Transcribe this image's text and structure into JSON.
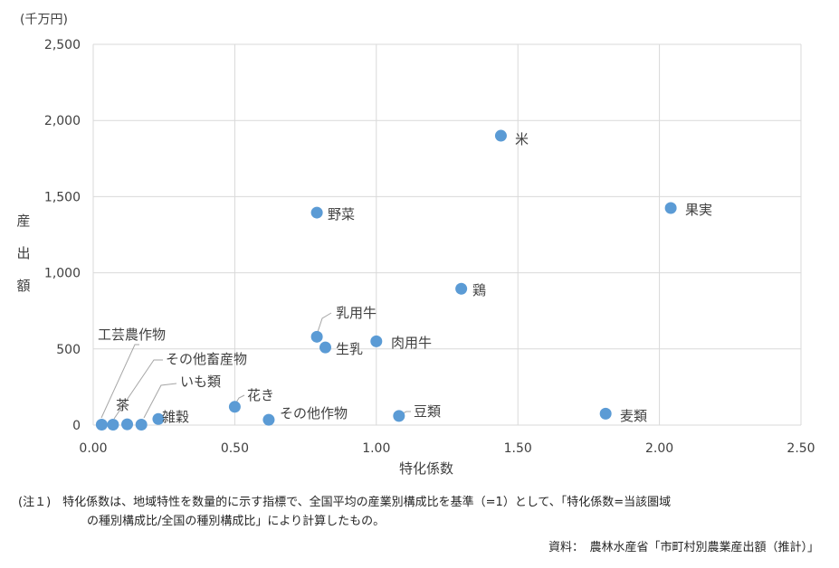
{
  "chart_data": {
    "type": "scatter",
    "unit_label": "(千万円)",
    "xlabel": "特化係数",
    "ylabel": [
      "産",
      "出",
      "額"
    ],
    "xlim": [
      0,
      2.5
    ],
    "ylim": [
      0,
      2500
    ],
    "x_ticks": [
      0,
      0.5,
      1.0,
      1.5,
      2.0,
      2.5
    ],
    "x_tick_labels": [
      "0.00",
      "0.50",
      "1.00",
      "1.50",
      "2.00",
      "2.50"
    ],
    "y_ticks": [
      0,
      500,
      1000,
      1500,
      2000,
      2500
    ],
    "y_tick_labels": [
      "0",
      "500",
      "1,000",
      "1,500",
      "2,000",
      "2,500"
    ],
    "grid": true,
    "marker_color": "#5b9bd5",
    "points": [
      {
        "label": "米",
        "x": 1.44,
        "y": 1900
      },
      {
        "label": "果実",
        "x": 2.04,
        "y": 1425
      },
      {
        "label": "野菜",
        "x": 0.79,
        "y": 1395
      },
      {
        "label": "鶏",
        "x": 1.3,
        "y": 895
      },
      {
        "label": "乳用牛",
        "x": 0.79,
        "y": 580
      },
      {
        "label": "生乳",
        "x": 0.82,
        "y": 510
      },
      {
        "label": "肉用牛",
        "x": 1.0,
        "y": 550
      },
      {
        "label": "花き",
        "x": 0.5,
        "y": 120
      },
      {
        "label": "その他作物",
        "x": 0.62,
        "y": 35
      },
      {
        "label": "豆類",
        "x": 1.08,
        "y": 60
      },
      {
        "label": "麦類",
        "x": 1.81,
        "y": 75
      },
      {
        "label": "工芸農作物",
        "x": 0.03,
        "y": 3
      },
      {
        "label": "その他畜産物",
        "x": 0.07,
        "y": 3
      },
      {
        "label": "茶",
        "x": 0.12,
        "y": 5
      },
      {
        "label": "いも類",
        "x": 0.17,
        "y": 3
      },
      {
        "label": "雑穀",
        "x": 0.23,
        "y": 40
      }
    ]
  },
  "notes": {
    "note_marker": "(注１)",
    "note_line1": "特化係数は、地域特性を数量的に示す指標で、全国平均の産業別構成比を基準（=1）として、「特化係数=当該圏域",
    "note_line2": "の種別構成比/全国の種別構成比」により計算したもの。",
    "source": "資料：　農林水産省「市町村別農業産出額（推計）」"
  }
}
